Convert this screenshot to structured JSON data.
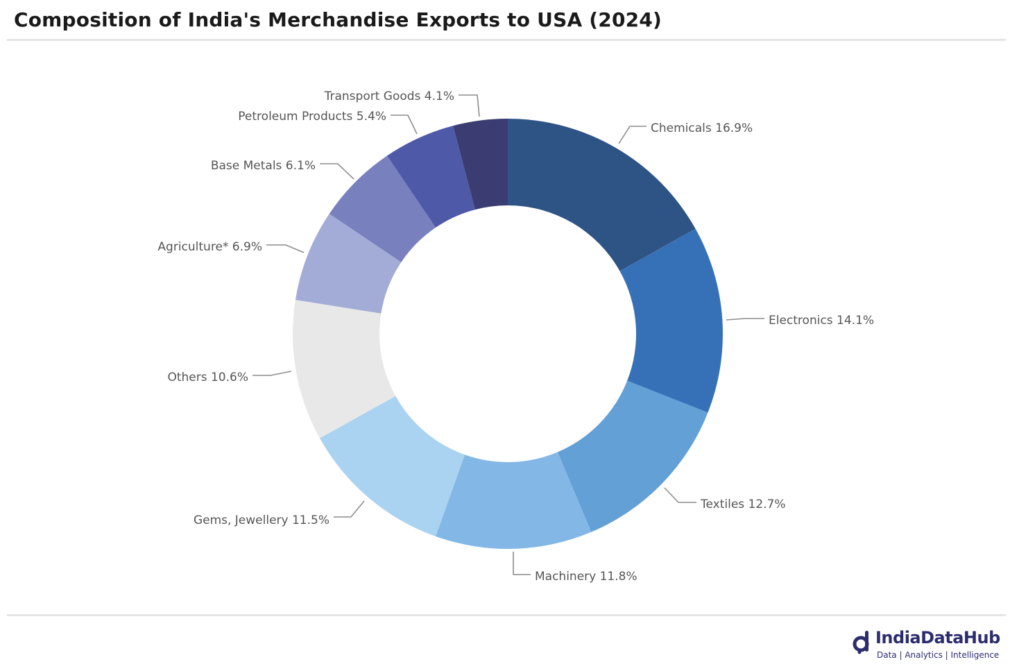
{
  "title": "Composition of India's Merchandise Exports to USA (2024)",
  "chart_data": {
    "type": "pie",
    "variant": "donut",
    "title": "Composition of India's Merchandise Exports to USA (2024)",
    "slices": [
      {
        "label": "Chemicals 16.9%",
        "name": "Chemicals",
        "value": 16.9,
        "color": "#2e5486"
      },
      {
        "label": "Electronics 14.1%",
        "name": "Electronics",
        "value": 14.1,
        "color": "#3671b8"
      },
      {
        "label": "Textiles 12.7%",
        "name": "Textiles",
        "value": 12.7,
        "color": "#63a0d6"
      },
      {
        "label": "Machinery 11.8%",
        "name": "Machinery",
        "value": 11.8,
        "color": "#83b8e6"
      },
      {
        "label": "Gems, Jewellery 11.5%",
        "name": "Gems, Jewellery",
        "value": 11.5,
        "color": "#aad2f1"
      },
      {
        "label": "Others 10.6%",
        "name": "Others",
        "value": 10.6,
        "color": "#e8e8e8"
      },
      {
        "label": "Agriculture* 6.9%",
        "name": "Agriculture*",
        "value": 6.9,
        "color": "#a3abd7"
      },
      {
        "label": "Base Metals 6.1%",
        "name": "Base Metals",
        "value": 6.1,
        "color": "#7880bd"
      },
      {
        "label": "Petroleum Products 5.4%",
        "name": "Petroleum Products",
        "value": 5.4,
        "color": "#4e5aa7"
      },
      {
        "label": "Transport Goods 4.1%",
        "name": "Transport Goods",
        "value": 4.1,
        "color": "#3b3d72"
      }
    ]
  },
  "logo": {
    "name": "IndiaDataHub",
    "tagline": "Data | Analytics | Intelligence",
    "color": "#2b2d6e"
  }
}
